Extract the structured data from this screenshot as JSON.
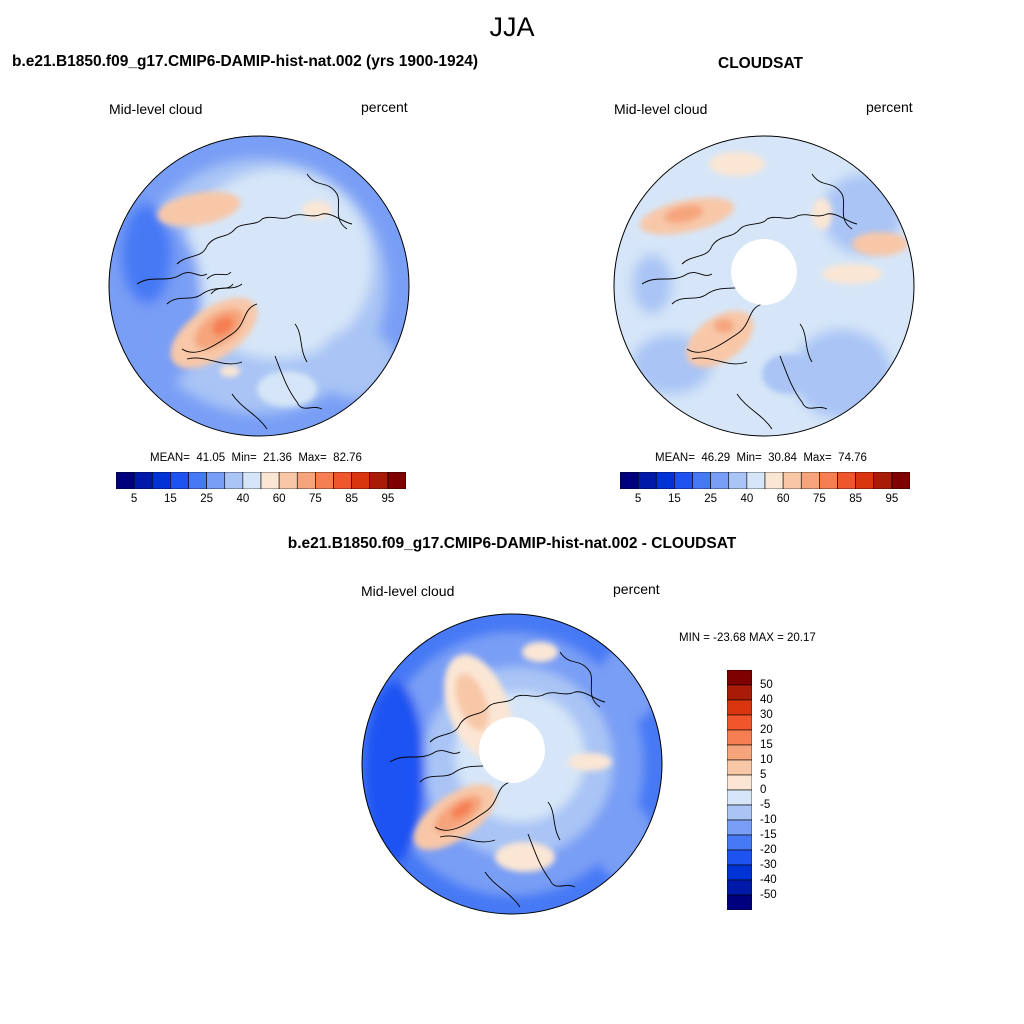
{
  "page_title": "JJA",
  "panels": {
    "model": {
      "title": "b.e21.B1850.f09_g17.CMIP6-DAMIP-hist-nat.002 (yrs 1900-1924)",
      "variable": "Mid-level cloud",
      "units": "percent",
      "mean_label": "MEAN=",
      "mean": "41.05",
      "min_label": "Min=",
      "min": "21.36",
      "max_label": "Max=",
      "max": "82.76"
    },
    "obs": {
      "title": "CLOUDSAT",
      "variable": "Mid-level cloud",
      "units": "percent",
      "mean_label": "MEAN=",
      "mean": "46.29",
      "min_label": "Min=",
      "min": "30.84",
      "max_label": "Max=",
      "max": "74.76"
    },
    "diff": {
      "title": "b.e21.B1850.f09_g17.CMIP6-DAMIP-hist-nat.002 - CLOUDSAT",
      "variable": "Mid-level cloud",
      "units": "percent",
      "range_text": "MIN = -23.68 MAX =  20.17"
    }
  },
  "colorbars": {
    "abs": {
      "colors": [
        "#00007f",
        "#0019a8",
        "#0033d6",
        "#1e53f2",
        "#4779f5",
        "#799ef5",
        "#a9c4f5",
        "#d6e6f8",
        "#fbe6d4",
        "#f8c7a8",
        "#f5a47c",
        "#f57f52",
        "#f0552b",
        "#d9350f",
        "#a81c07",
        "#7f0000"
      ],
      "tick_labels": [
        "5",
        "15",
        "25",
        "40",
        "60",
        "75",
        "85",
        "95"
      ]
    },
    "diff": {
      "colors": [
        "#7f0000",
        "#a81c07",
        "#d9350f",
        "#f0552b",
        "#f57f52",
        "#f5a47c",
        "#f8c7a8",
        "#fbe6d4",
        "#d6e6f8",
        "#a9c4f5",
        "#799ef5",
        "#4779f5",
        "#1e53f2",
        "#0033d6",
        "#0019a8",
        "#00007f"
      ],
      "tick_labels": [
        "50",
        "40",
        "30",
        "20",
        "15",
        "10",
        "5",
        "0",
        "-5",
        "-10",
        "-15",
        "-20",
        "-30",
        "-40",
        "-50"
      ]
    }
  }
}
